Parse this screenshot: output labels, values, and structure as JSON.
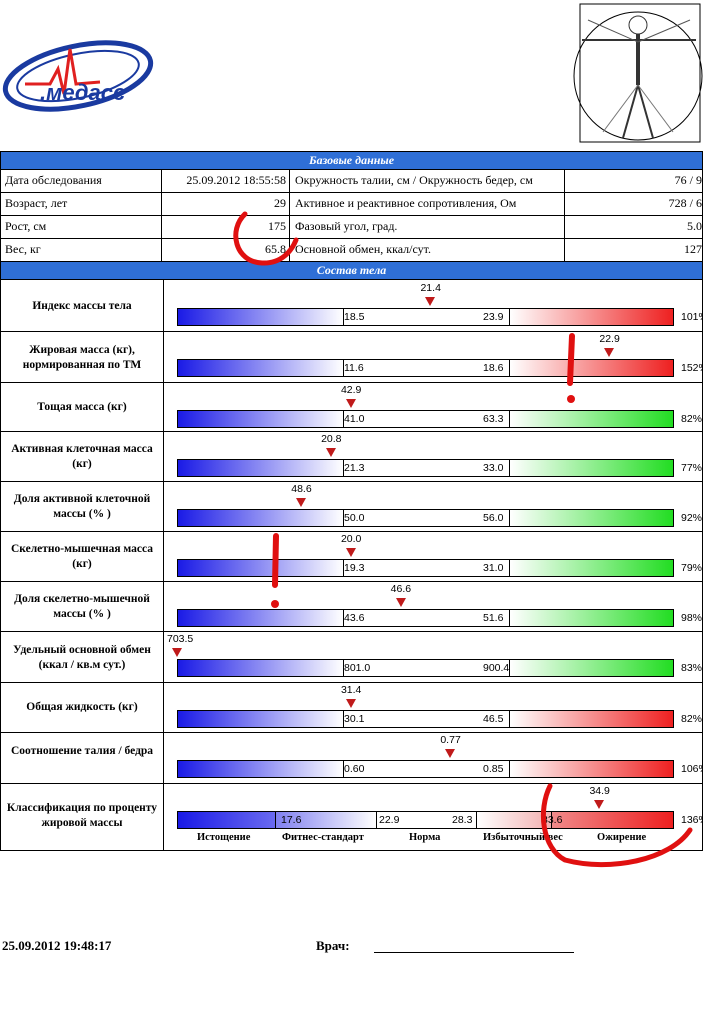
{
  "logo": {
    "text": ".медасс",
    "colors": [
      "#1a3aa0",
      "#e02020"
    ]
  },
  "basic": {
    "title": "Базовые данные",
    "rows": [
      {
        "left_label": "Дата обследования",
        "left_value": "25.09.2012 18:55:58",
        "right_label": "Окружность талии, см / Окружность бедер, см",
        "right_value": "76 / 9"
      },
      {
        "left_label": "Возраст, лет",
        "left_value": "29",
        "right_label": "Активное и реактивное сопротивления, Ом",
        "right_value": "728 / 6"
      },
      {
        "left_label": "Рост, см",
        "left_value": "175",
        "right_label": "Фазовый угол, град.",
        "right_value": "5.0"
      },
      {
        "left_label": "Вес, кг",
        "left_value": "65.8",
        "right_label": "Основной обмен, ккал/сут.",
        "right_value": "127"
      }
    ]
  },
  "composition": {
    "title": "Состав тела",
    "rows": [
      {
        "label": "Индекс массы тела",
        "marker": "21.4",
        "low": "18.5",
        "high": "23.9",
        "pct": "101%",
        "right": "red",
        "pos": 0.51
      },
      {
        "label": "Жировая масса (кг), нормированная по ТМ",
        "marker": "22.9",
        "low": "11.6",
        "high": "18.6",
        "pct": "152%",
        "right": "red",
        "pos": 0.87
      },
      {
        "label": "Тощая масса (кг)",
        "marker": "42.9",
        "low": "41.0",
        "high": "63.3",
        "pct": "82%",
        "right": "green",
        "pos": 0.35
      },
      {
        "label": "Активная клеточная масса (кг)",
        "marker": "20.8",
        "low": "21.3",
        "high": "33.0",
        "pct": "77%",
        "right": "green",
        "pos": 0.31
      },
      {
        "label": "Доля активной клеточной массы (% )",
        "marker": "48.6",
        "low": "50.0",
        "high": "56.0",
        "pct": "92%",
        "right": "green",
        "pos": 0.25
      },
      {
        "label": "Скелетно-мышечная масса (кг)",
        "marker": "20.0",
        "low": "19.3",
        "high": "31.0",
        "pct": "79%",
        "right": "green",
        "pos": 0.35
      },
      {
        "label": "Доля скелетно-мышечной массы (% )",
        "marker": "46.6",
        "low": "43.6",
        "high": "51.6",
        "pct": "98%",
        "right": "green",
        "pos": 0.45
      },
      {
        "label": "Удельный основной обмен (ккал / кв.м сут.)",
        "marker": "703.5",
        "low": "801.0",
        "high": "900.4",
        "pct": "83%",
        "right": "green",
        "pos": 0.0
      },
      {
        "label": "Общая жидкость (кг)",
        "marker": "31.4",
        "low": "30.1",
        "high": "46.5",
        "pct": "82%",
        "right": "red",
        "pos": 0.35
      },
      {
        "label": "Соотношение талия / бедра",
        "marker": "0.77",
        "low": "0.60",
        "high": "0.85",
        "pct": "106%",
        "right": "red",
        "pos": 0.55
      }
    ],
    "classification": {
      "label": "Классификация по проценту жировой массы",
      "marker": "34.9",
      "pct": "136%",
      "pos": 0.85,
      "thresholds": [
        "17.6",
        "22.9",
        "28.3",
        "33.6"
      ],
      "classes": [
        "Истощение",
        "Фитнес-стандарт",
        "Норма",
        "Избыточный вес",
        "Ожирение"
      ]
    }
  },
  "footer": {
    "datetime": "25.09.2012   19:48:17",
    "doctor_label": "Врач:"
  }
}
